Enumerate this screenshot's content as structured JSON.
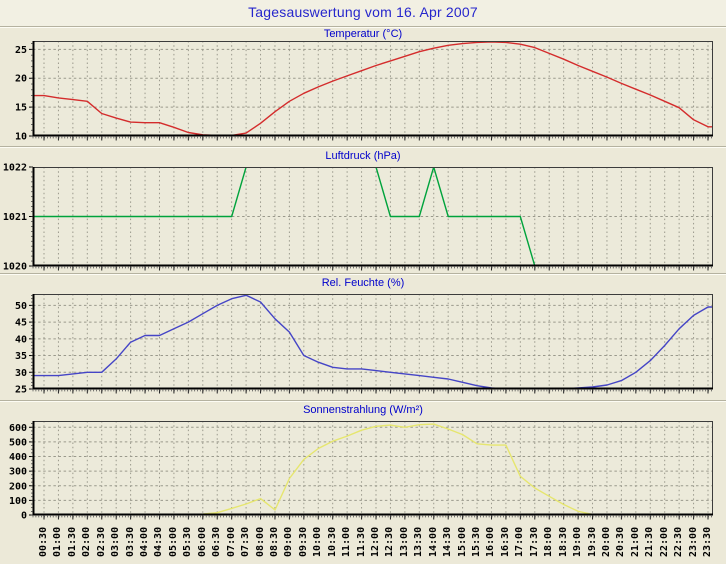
{
  "page_title": "Tagesauswertung vom 16. Apr 2007",
  "colors": {
    "page_bg": "#ece9d8",
    "title_strip_bg": "#f2f0e3",
    "main_title_text": "#2626cc",
    "chart_title_text": "#0000cc",
    "plot_bg": "#eceada",
    "grid": "#9a998c",
    "axis": "#000000",
    "frame": "#3c3c3c",
    "tick_label": "#000000",
    "temperature_line": "#d42c2c",
    "pressure_line": "#00a33c",
    "humidity_line": "#4545c6",
    "radiation_line": "#e6e66e"
  },
  "time_labels": [
    "00:30",
    "01:00",
    "01:30",
    "02:00",
    "02:30",
    "03:00",
    "03:30",
    "04:00",
    "04:30",
    "05:00",
    "05:30",
    "06:00",
    "06:30",
    "07:00",
    "07:30",
    "08:00",
    "08:30",
    "09:00",
    "09:30",
    "10:00",
    "10:30",
    "11:00",
    "11:30",
    "12:00",
    "12:30",
    "13:00",
    "13:30",
    "14:00",
    "14:30",
    "15:00",
    "15:30",
    "16:00",
    "16:30",
    "17:00",
    "17:30",
    "18:00",
    "18:30",
    "19:00",
    "19:30",
    "20:00",
    "20:30",
    "21:00",
    "21:30",
    "22:00",
    "22:30",
    "23:00",
    "23:30"
  ],
  "chart_data": [
    {
      "type": "line",
      "title": "Temperatur (°C)",
      "color": "#d42c2c",
      "x_ref": "time_labels",
      "ylim": [
        10,
        26.45
      ],
      "yticks": [
        10,
        15,
        20,
        25
      ],
      "minor_step": 1,
      "grid": true,
      "values": [
        17.0,
        16.6,
        16.3,
        16.0,
        13.9,
        13.1,
        12.4,
        12.3,
        12.3,
        11.5,
        10.6,
        10.2,
        10.1,
        10.1,
        10.5,
        12.2,
        14.2,
        16.0,
        17.4,
        18.5,
        19.5,
        20.4,
        21.3,
        22.2,
        23.0,
        23.8,
        24.6,
        25.2,
        25.7,
        26.0,
        26.2,
        26.3,
        26.2,
        25.9,
        25.3,
        24.3,
        23.3,
        22.2,
        21.2,
        20.2,
        19.1,
        18.1,
        17.1,
        16.0,
        14.9,
        12.8,
        11.6
      ]
    },
    {
      "type": "line",
      "title": "Luftdruck (hPa)",
      "color": "#00a33c",
      "x_ref": "time_labels",
      "ylim": [
        1020,
        1022
      ],
      "yticks": [
        1020,
        1021,
        1022
      ],
      "minor_step": 0.1,
      "grid": true,
      "values": [
        1021,
        1021,
        1021,
        1021,
        1021,
        1021,
        1021,
        1021,
        1021,
        1021,
        1021,
        1021,
        1021,
        1021,
        1022,
        1022,
        1022,
        1022,
        1022,
        1022,
        1022,
        1022,
        1022,
        1022,
        1021,
        1021,
        1021,
        1022,
        1021,
        1021,
        1021,
        1021,
        1021,
        1021,
        1020,
        1020,
        1020,
        1020,
        1020,
        1020,
        1020,
        1020,
        1020,
        1020,
        1020,
        1020,
        1020
      ]
    },
    {
      "type": "line",
      "title": "Rel. Feuchte (%)",
      "color": "#4545c6",
      "x_ref": "time_labels",
      "ylim": [
        25,
        53.4
      ],
      "yticks": [
        25,
        30,
        35,
        40,
        45,
        50
      ],
      "minor_step": 1,
      "grid": true,
      "values": [
        29,
        29,
        29.5,
        30,
        30,
        34,
        39,
        41,
        41,
        43,
        45,
        47.5,
        50,
        52,
        53,
        51,
        46,
        42,
        35,
        33,
        31.5,
        31,
        31,
        30.5,
        30,
        29.5,
        29,
        28.5,
        28,
        27,
        26,
        25.3,
        25,
        24.8,
        24.8,
        24.8,
        25.1,
        25.3,
        25.6,
        26.2,
        27.5,
        30,
        33.5,
        38,
        43,
        47,
        49.5
      ]
    },
    {
      "type": "line",
      "title": "Sonnenstrahlung (W/m²)",
      "color": "#e6e66e",
      "x_ref": "time_labels",
      "ylim": [
        0,
        643
      ],
      "yticks": [
        0,
        100,
        200,
        300,
        400,
        500,
        600
      ],
      "minor_step": 25,
      "grid": true,
      "values": [
        0,
        0,
        0,
        0,
        0,
        0,
        0,
        0,
        0,
        0,
        0,
        6,
        16,
        45,
        75,
        112,
        35,
        250,
        380,
        455,
        505,
        540,
        580,
        607,
        615,
        600,
        618,
        622,
        588,
        550,
        487,
        478,
        478,
        265,
        185,
        128,
        72,
        25,
        4,
        0,
        0,
        0,
        0,
        0,
        0,
        0,
        0
      ]
    }
  ]
}
